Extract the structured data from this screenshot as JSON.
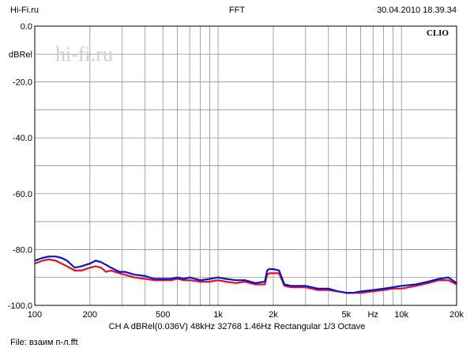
{
  "header": {
    "left": "Hi-Fi.ru",
    "center": "FFT",
    "right": "30.04.2010 18.39.34"
  },
  "footer": {
    "info": "CH A  dBRel(0.036V)  48kHz  32768  1.46Hz  Rectangular  1/3 Octave",
    "file": "File: взаим  п-л.fft"
  },
  "brand_label": "CLIO",
  "watermark": "hi-fi.ru",
  "colors": {
    "series_red": "#e8101a",
    "series_blue": "#1010d0",
    "grid": "#808080",
    "watermark": "#cfcfcf"
  },
  "chart_data": {
    "type": "line",
    "title": "",
    "xlabel": "Hz",
    "ylabel": "dBRel",
    "xscale": "log",
    "xlim": [
      100,
      20000
    ],
    "ylim": [
      -100,
      0
    ],
    "grid": true,
    "x_ticks": [
      {
        "value": 100,
        "label": "100"
      },
      {
        "value": 200,
        "label": "200"
      },
      {
        "value": 500,
        "label": "500"
      },
      {
        "value": 1000,
        "label": "1k"
      },
      {
        "value": 2000,
        "label": "2k"
      },
      {
        "value": 5000,
        "label": "5k"
      },
      {
        "value": 10000,
        "label": "10k"
      },
      {
        "value": 20000,
        "label": "20k"
      }
    ],
    "y_ticks": [
      {
        "value": 0,
        "label": "0.0"
      },
      {
        "value": -20,
        "label": "-20.0"
      },
      {
        "value": -40,
        "label": "-40.0"
      },
      {
        "value": -60,
        "label": "-60.0"
      },
      {
        "value": -80,
        "label": "-80.0"
      },
      {
        "value": -100,
        "label": "-100.0"
      }
    ],
    "series": [
      {
        "color": "#e8101a",
        "x": [
          100,
          110,
          120,
          130,
          140,
          150,
          165,
          180,
          200,
          215,
          230,
          245,
          260,
          290,
          310,
          350,
          400,
          450,
          500,
          550,
          600,
          650,
          700,
          800,
          900,
          1000,
          1100,
          1250,
          1400,
          1600,
          1800,
          1850,
          1900,
          2000,
          2150,
          2300,
          2500,
          3000,
          3500,
          4000,
          4500,
          5000,
          5500,
          6000,
          7000,
          8000,
          9000,
          10000,
          12000,
          14000,
          16000,
          18000,
          20000
        ],
        "y": [
          -85,
          -84,
          -83.5,
          -84,
          -85,
          -86,
          -87.5,
          -87.5,
          -86.5,
          -86,
          -86.5,
          -88,
          -87.5,
          -88.5,
          -89,
          -90,
          -90.5,
          -91,
          -91,
          -91,
          -90.5,
          -91,
          -91,
          -91.5,
          -91.5,
          -91,
          -91.5,
          -92,
          -91.5,
          -92.5,
          -92.5,
          -89,
          -88.5,
          -88.5,
          -88.5,
          -93,
          -93.5,
          -93.5,
          -94.5,
          -94.5,
          -95,
          -95.5,
          -95.5,
          -95.5,
          -95,
          -94.5,
          -94,
          -94,
          -93,
          -92,
          -91,
          -91,
          -92.5
        ]
      },
      {
        "color": "#1010d0",
        "x": [
          100,
          110,
          120,
          130,
          140,
          150,
          165,
          180,
          200,
          215,
          230,
          245,
          260,
          290,
          310,
          350,
          400,
          450,
          500,
          550,
          600,
          650,
          700,
          800,
          900,
          1000,
          1100,
          1250,
          1400,
          1600,
          1800,
          1850,
          1900,
          2000,
          2150,
          2300,
          2500,
          3000,
          3500,
          4000,
          4500,
          5000,
          5500,
          6000,
          7000,
          8000,
          9000,
          10000,
          12000,
          14000,
          16000,
          18000,
          20000
        ],
        "y": [
          -84,
          -83,
          -82.5,
          -82.5,
          -83,
          -84,
          -86.5,
          -86,
          -85,
          -84,
          -84.5,
          -85.5,
          -86.5,
          -88,
          -88,
          -89,
          -89.5,
          -90.5,
          -90.5,
          -90.5,
          -90,
          -90.5,
          -90,
          -91,
          -90.5,
          -90,
          -90.5,
          -91,
          -91,
          -92,
          -91.5,
          -87.5,
          -87,
          -87,
          -87.5,
          -92.5,
          -93,
          -93,
          -94,
          -94,
          -95,
          -95.5,
          -95.5,
          -95,
          -94.5,
          -94,
          -93.5,
          -93,
          -92.5,
          -91.5,
          -90.5,
          -90,
          -92
        ]
      }
    ]
  }
}
